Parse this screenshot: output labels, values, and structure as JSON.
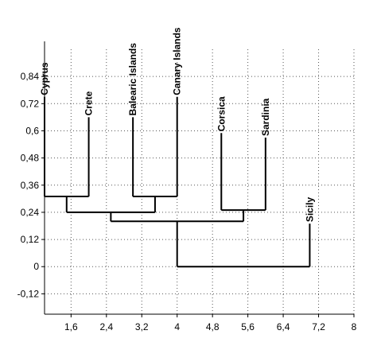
{
  "chart_data": {
    "type": "dendrogram",
    "leaves": [
      "Cyprus",
      "Crete",
      "Balearic Islands",
      "Canary Islands",
      "Corsica",
      "Sardinia",
      "Sicily"
    ],
    "leaf_x": [
      1,
      2,
      3,
      4,
      5,
      6,
      7
    ],
    "leaf_heights": [
      0.75,
      0.66,
      0.66,
      0.75,
      0.59,
      0.57,
      0.19
    ],
    "merges": [
      {
        "children": [
          0,
          1
        ],
        "height": 0.31
      },
      {
        "children": [
          2,
          3
        ],
        "height": 0.31
      },
      {
        "children": [
          7,
          8
        ],
        "height": 0.24
      },
      {
        "children": [
          4,
          5
        ],
        "height": 0.25
      },
      {
        "children": [
          9,
          10
        ],
        "height": 0.2
      },
      {
        "children": [
          11,
          6
        ],
        "height": 0
      }
    ],
    "color": "#000000",
    "xlim": [
      1,
      8
    ],
    "xticks": [
      {
        "value": 1.6,
        "label": "1,6"
      },
      {
        "value": 2.4,
        "label": "2,4"
      },
      {
        "value": 3.2,
        "label": "3,2"
      },
      4,
      {
        "value": 4.8,
        "label": "4,8"
      },
      {
        "value": 5.6,
        "label": "5,6"
      },
      {
        "value": 6.4,
        "label": "6,4"
      },
      {
        "value": 7.2,
        "label": "7,2"
      },
      8
    ],
    "ylim": [
      -0.21,
      0.96
    ],
    "yticks": [
      {
        "value": 0.84,
        "label": "0,84"
      },
      {
        "value": 0.72,
        "label": "0,72"
      },
      {
        "value": 0.6,
        "label": "0,6"
      },
      {
        "value": 0.48,
        "label": "0,48"
      },
      {
        "value": 0.36,
        "label": "0,36"
      },
      {
        "value": 0.24,
        "label": "0,24"
      },
      {
        "value": 0.12,
        "label": "0,12"
      },
      0,
      {
        "value": -0.12,
        "label": "-0,12"
      }
    ],
    "grid": true
  }
}
